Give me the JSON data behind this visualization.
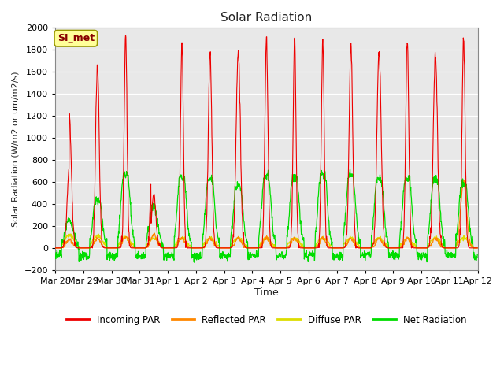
{
  "title": "Solar Radiation",
  "ylabel": "Solar Radiation (W/m2 or um/m2/s)",
  "xlabel": "Time",
  "ylim": [
    -200,
    2000
  ],
  "yticks": [
    -200,
    0,
    200,
    400,
    600,
    800,
    1000,
    1200,
    1400,
    1600,
    1800,
    2000
  ],
  "x_labels": [
    "Mar 28",
    "Mar 29",
    "Mar 30",
    "Mar 31",
    "Apr 1",
    "Apr 2",
    "Apr 3",
    "Apr 4",
    "Apr 5",
    "Apr 6",
    "Apr 7",
    "Apr 8",
    "Apr 9",
    "Apr 10",
    "Apr 11",
    "Apr 12"
  ],
  "annotation_text": "SI_met",
  "annotation_box_color": "#FFFF99",
  "annotation_box_edge": "#999900",
  "annotation_text_color": "#880000",
  "colors": {
    "incoming": "#EE0000",
    "reflected": "#FF8800",
    "diffuse": "#DDDD00",
    "net": "#00DD00"
  },
  "legend_labels": [
    "Incoming PAR",
    "Reflected PAR",
    "Diffuse PAR",
    "Net Radiation"
  ],
  "background_plot": "#E8E8E8",
  "background_fig": "#FFFFFF",
  "grid_color": "#FFFFFF",
  "num_days": 15,
  "hours_per_day": 24,
  "pts_per_hour": 4
}
